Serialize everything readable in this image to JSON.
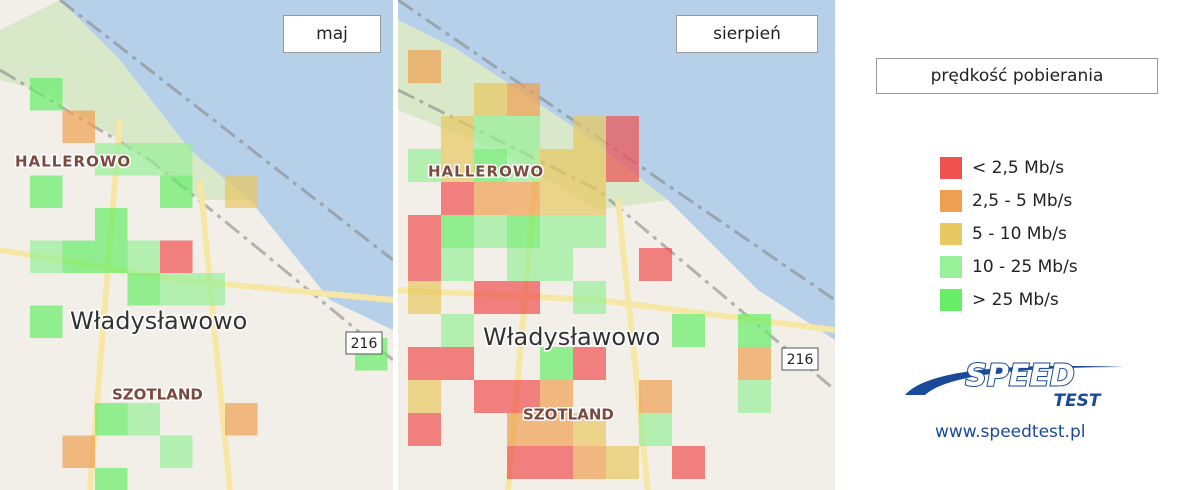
{
  "panels": [
    {
      "title": "maj",
      "cells": [
        [
          0,
          0,
          4
        ],
        [
          1,
          1,
          1
        ],
        [
          2,
          2,
          3
        ],
        [
          3,
          2,
          3
        ],
        [
          4,
          2,
          3
        ],
        [
          0,
          3,
          4
        ],
        [
          4,
          3,
          4
        ],
        [
          6,
          3,
          2
        ],
        [
          2,
          4,
          4
        ],
        [
          0,
          5,
          3
        ],
        [
          1,
          5,
          4
        ],
        [
          2,
          5,
          4
        ],
        [
          3,
          5,
          3
        ],
        [
          4,
          5,
          0
        ],
        [
          3,
          6,
          4
        ],
        [
          4,
          6,
          3
        ],
        [
          5,
          6,
          3
        ],
        [
          0,
          7,
          4
        ],
        [
          10,
          8,
          4
        ],
        [
          2,
          10,
          4
        ],
        [
          3,
          10,
          3
        ],
        [
          6,
          10,
          1
        ],
        [
          1,
          11,
          1
        ],
        [
          4,
          11,
          3
        ],
        [
          2,
          12,
          4
        ]
      ]
    },
    {
      "title": "sierpień",
      "cells": [
        [
          0,
          0,
          1
        ],
        [
          2,
          1,
          2
        ],
        [
          3,
          1,
          1
        ],
        [
          1,
          2,
          2
        ],
        [
          2,
          2,
          3
        ],
        [
          3,
          2,
          3
        ],
        [
          5,
          2,
          2
        ],
        [
          6,
          2,
          0
        ],
        [
          0,
          3,
          3
        ],
        [
          1,
          3,
          2
        ],
        [
          2,
          3,
          4
        ],
        [
          3,
          3,
          3
        ],
        [
          4,
          3,
          2
        ],
        [
          5,
          3,
          2
        ],
        [
          6,
          3,
          0
        ],
        [
          1,
          4,
          0
        ],
        [
          2,
          4,
          1
        ],
        [
          3,
          4,
          1
        ],
        [
          4,
          4,
          2
        ],
        [
          5,
          4,
          2
        ],
        [
          0,
          5,
          0
        ],
        [
          1,
          5,
          4
        ],
        [
          2,
          5,
          3
        ],
        [
          3,
          5,
          4
        ],
        [
          4,
          5,
          3
        ],
        [
          5,
          5,
          3
        ],
        [
          0,
          6,
          0
        ],
        [
          1,
          6,
          3
        ],
        [
          3,
          6,
          3
        ],
        [
          4,
          6,
          3
        ],
        [
          7,
          6,
          0
        ],
        [
          0,
          7,
          2
        ],
        [
          2,
          7,
          0
        ],
        [
          3,
          7,
          0
        ],
        [
          5,
          7,
          3
        ],
        [
          1,
          8,
          3
        ],
        [
          8,
          8,
          4
        ],
        [
          10,
          8,
          4
        ],
        [
          0,
          9,
          0
        ],
        [
          1,
          9,
          0
        ],
        [
          4,
          9,
          4
        ],
        [
          5,
          9,
          0
        ],
        [
          10,
          9,
          1
        ],
        [
          0,
          10,
          2
        ],
        [
          2,
          10,
          0
        ],
        [
          3,
          10,
          0
        ],
        [
          4,
          10,
          1
        ],
        [
          7,
          10,
          1
        ],
        [
          10,
          10,
          3
        ],
        [
          0,
          11,
          0
        ],
        [
          3,
          11,
          1
        ],
        [
          4,
          11,
          1
        ],
        [
          5,
          11,
          2
        ],
        [
          7,
          11,
          3
        ],
        [
          3,
          12,
          0
        ],
        [
          4,
          12,
          0
        ],
        [
          5,
          12,
          1
        ],
        [
          6,
          12,
          2
        ],
        [
          8,
          12,
          0
        ]
      ]
    }
  ],
  "legend": {
    "title": "prędkość pobierania",
    "items": [
      {
        "label": "< 2,5 Mb/s",
        "color": "#f05050"
      },
      {
        "label": "2,5 - 5 Mb/s",
        "color": "#f0a050"
      },
      {
        "label": "5 - 10 Mb/s",
        "color": "#e8c860"
      },
      {
        "label": "10 - 25 Mb/s",
        "color": "#98f098"
      },
      {
        "label": "> 25 Mb/s",
        "color": "#66ee66"
      }
    ]
  },
  "map_labels": {
    "district1": "HALLEROWO",
    "town": "Władysławowo",
    "district2": "SZOTLAND",
    "road": "216"
  },
  "logo": {
    "name": "SPEED",
    "sub": "TEST",
    "url": "www.speedtest.pl"
  }
}
